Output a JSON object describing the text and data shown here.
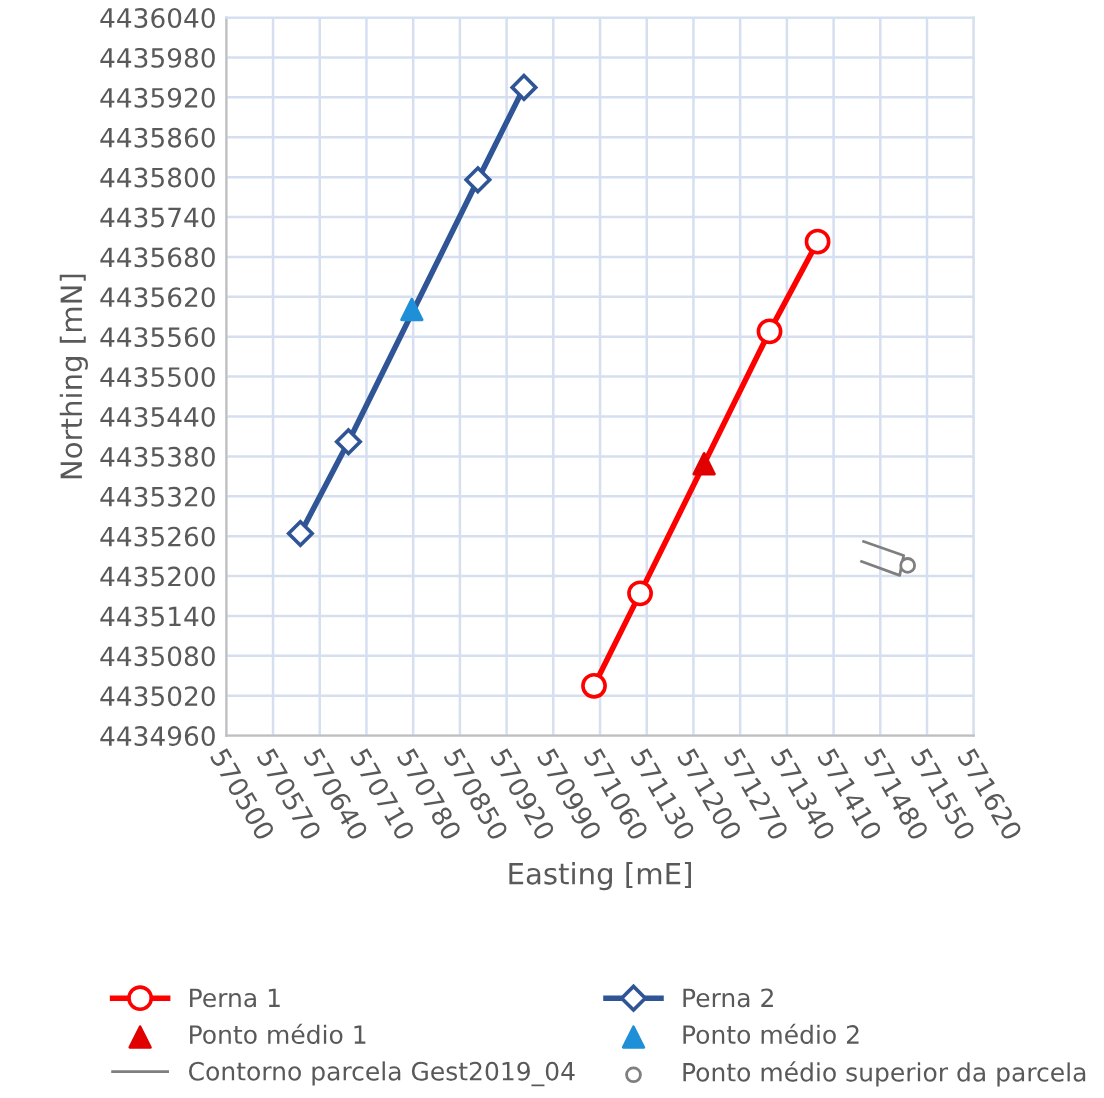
{
  "chart_data": {
    "type": "line",
    "xlabel": "Easting [mE]",
    "ylabel": "Northing [mN]",
    "xlim": [
      570500,
      571620
    ],
    "xticks": [
      570500,
      570570,
      570640,
      570710,
      570780,
      570850,
      570920,
      570990,
      571060,
      571130,
      571200,
      571270,
      571340,
      571410,
      571480,
      571550,
      571620
    ],
    "ylim": [
      4434960,
      4436040
    ],
    "yticks": [
      4434960,
      4435020,
      4435080,
      4435140,
      4435200,
      4435260,
      4435320,
      4435380,
      4435440,
      4435500,
      4435560,
      4435620,
      4435680,
      4435740,
      4435800,
      4435860,
      4435920,
      4435980,
      4436040
    ],
    "grid": true,
    "legend": "bottom",
    "series": [
      {
        "name": "Perna 1",
        "marker": "circle",
        "color": "#ff0000",
        "x": [
          571051,
          571120,
          571314,
          571386
        ],
        "values": [
          4435035,
          4435174,
          4435568,
          4435703
        ]
      },
      {
        "name": "Perna 2",
        "marker": "diamond",
        "color": "#2f5597",
        "x": [
          570611,
          570683,
          570877,
          570946
        ],
        "values": [
          4435264,
          4435402,
          4435796,
          4435935
        ]
      },
      {
        "name": "Ponto médio 1",
        "type": "scatter",
        "marker": "triangle",
        "color": "#e00000",
        "x": [
          571216
        ],
        "values": [
          4435369
        ]
      },
      {
        "name": "Ponto médio 2",
        "type": "scatter",
        "marker": "triangle",
        "color": "#1f8fd8",
        "x": [
          570778
        ],
        "values": [
          4435601
        ]
      },
      {
        "name": "Contorno parcela Gest2019_04",
        "marker": "none",
        "color": "#7f7f7f",
        "x": [
          571455,
          571515,
          571509,
          571452
        ],
        "values": [
          4435252,
          4435231,
          4435201,
          4435222
        ]
      },
      {
        "name": "Ponto médio superior da parcela",
        "type": "scatter",
        "marker": "circle",
        "color": "#7f7f7f",
        "x": [
          571521
        ],
        "values": [
          4435216
        ]
      }
    ]
  }
}
